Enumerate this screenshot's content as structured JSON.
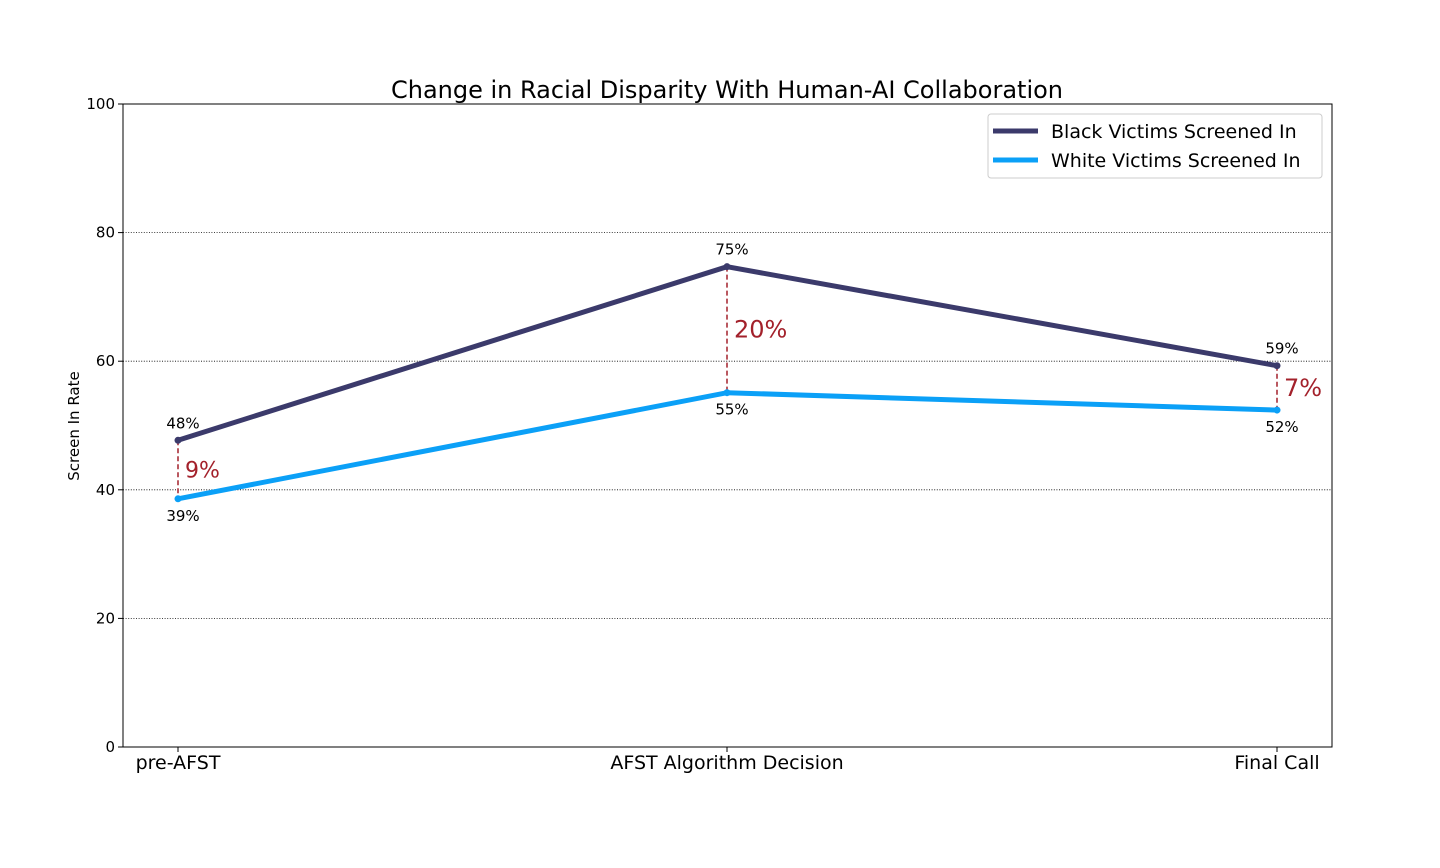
{
  "chart_data": {
    "type": "line",
    "title": "Change in Racial Disparity With Human-AI Collaboration",
    "xlabel": "",
    "ylabel": "Screen In Rate",
    "ylim": [
      0,
      100
    ],
    "yticks": [
      0,
      20,
      40,
      60,
      80,
      100
    ],
    "categories": [
      "pre-AFST",
      "AFST Algorithm Decision",
      "Final Call"
    ],
    "grid": "horizontal dotted",
    "legend_position": "top-right",
    "series": [
      {
        "name": "Black Victims Screened In",
        "color": "#3b3a6b",
        "values": [
          47.7,
          74.7,
          59.3
        ],
        "labels": [
          "48%",
          "75%",
          "59%"
        ]
      },
      {
        "name": "White Victims Screened In",
        "color": "#0ba0f7",
        "values": [
          38.6,
          55.1,
          52.4
        ],
        "labels": [
          "39%",
          "55%",
          "52%"
        ]
      }
    ],
    "gaps": {
      "color": "#a3212b",
      "labels": [
        "9%",
        "20%",
        "7%"
      ]
    }
  }
}
